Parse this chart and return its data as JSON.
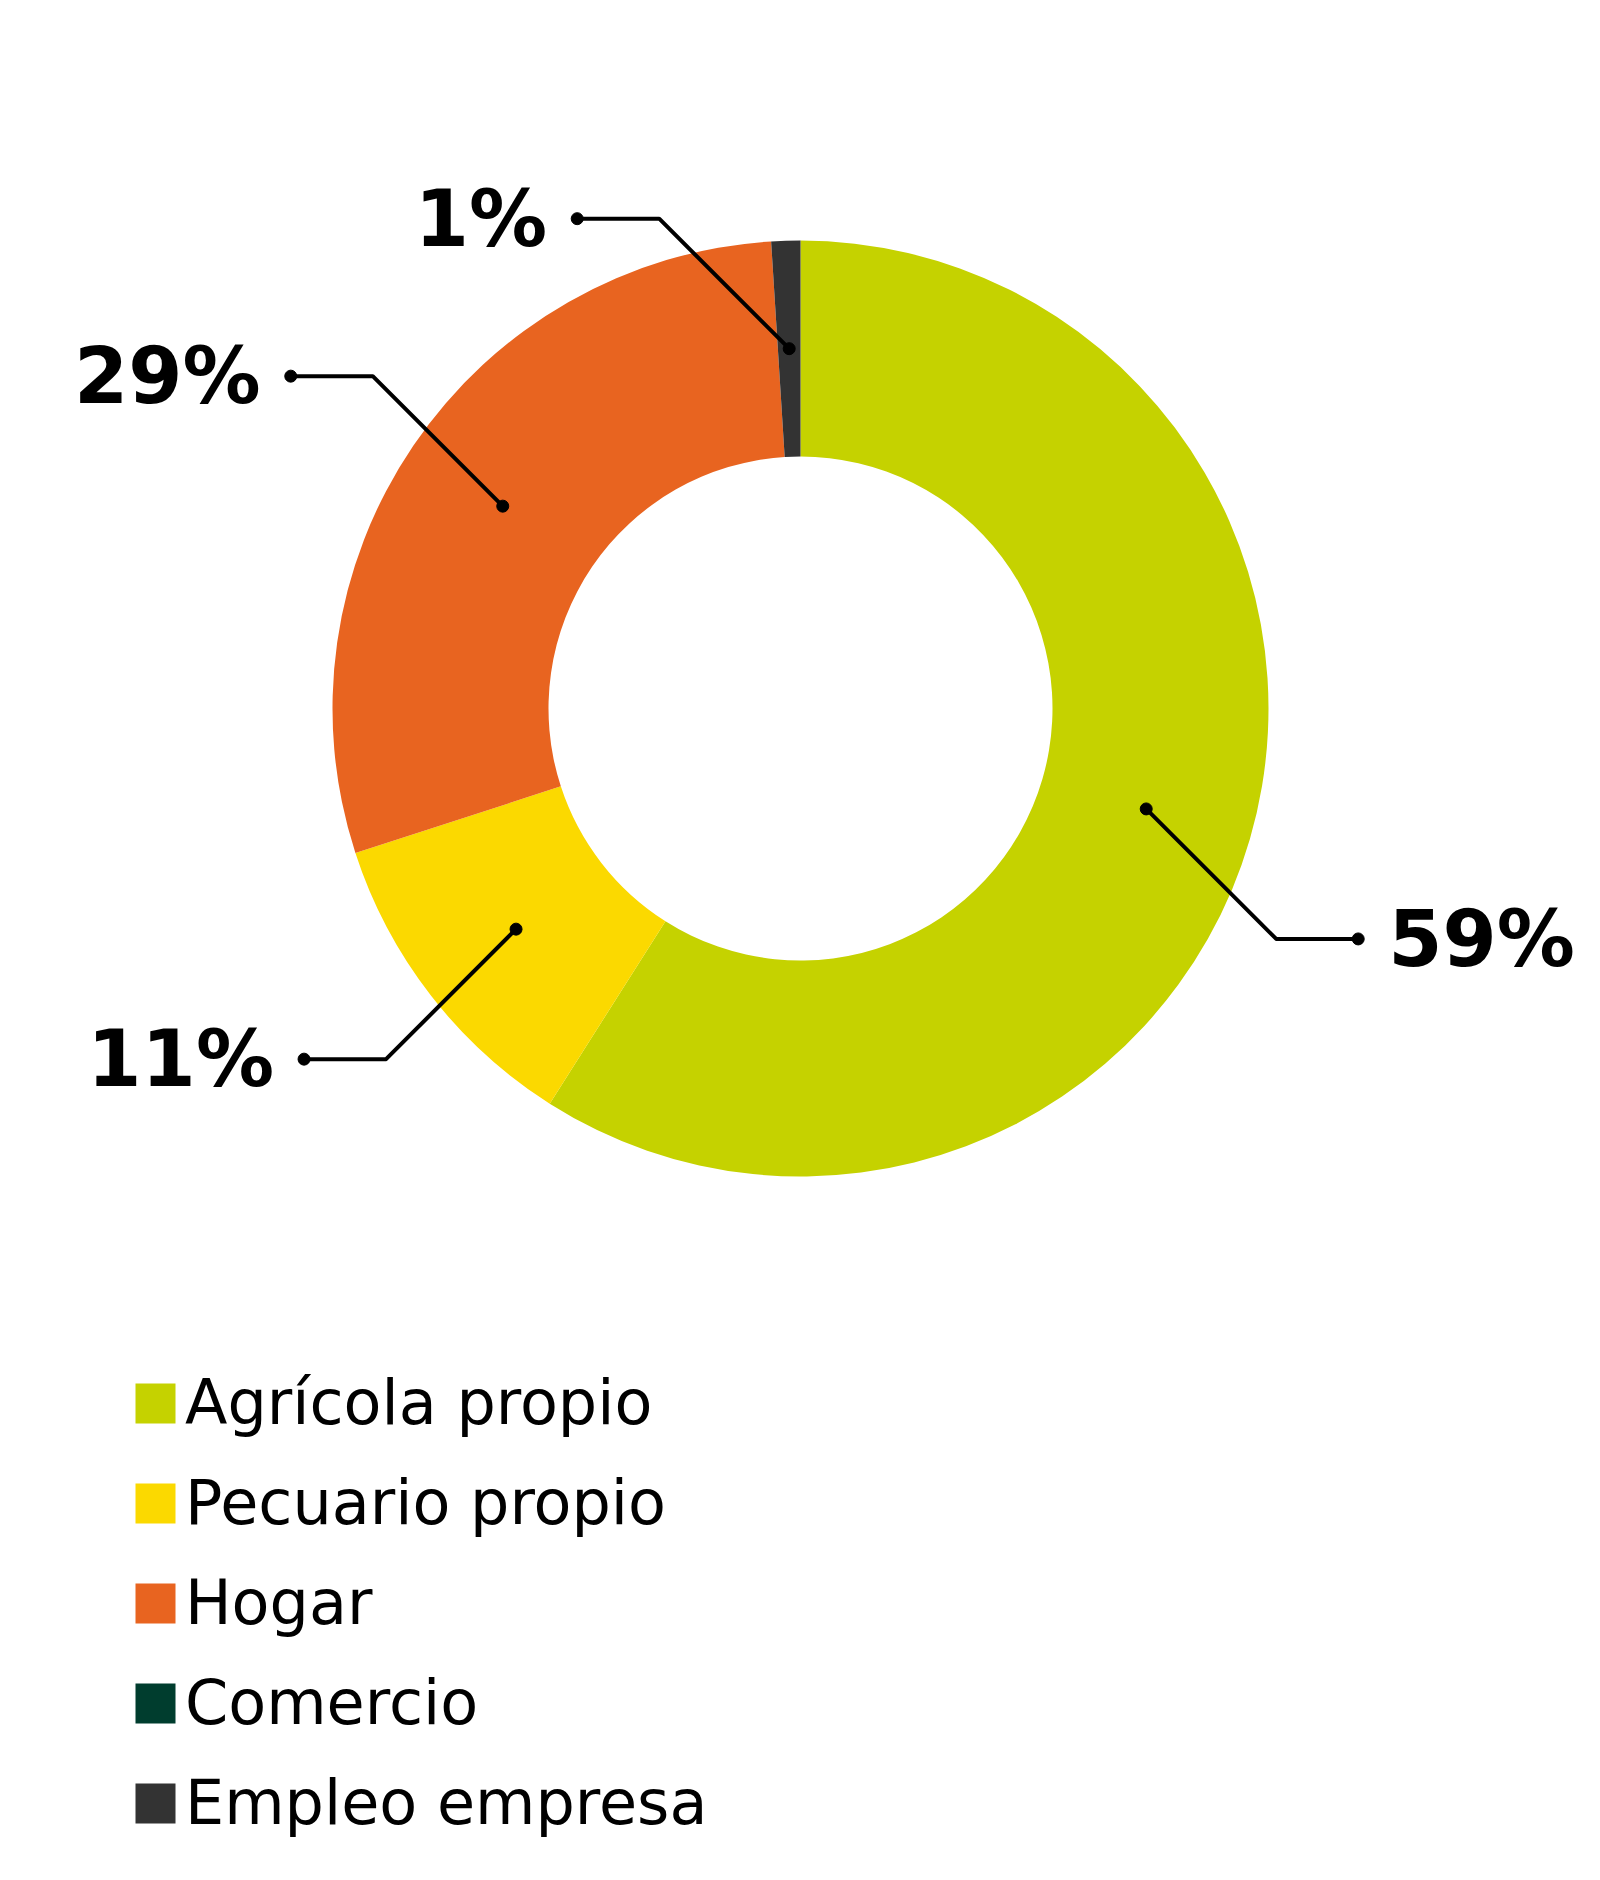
{
  "chart_data": {
    "type": "donut",
    "categories": [
      "Agrícola propio",
      "Pecuario propio",
      "Hogar",
      "Comercio",
      "Empleo empresa"
    ],
    "values": [
      59,
      11,
      29,
      0,
      1
    ],
    "colors": [
      "#c5d200",
      "#fbd900",
      "#e86420",
      "#003d2e",
      "#333333"
    ],
    "value_labels": [
      "59%",
      "11%",
      "29%",
      null,
      "1%"
    ],
    "legend": "bottom"
  }
}
